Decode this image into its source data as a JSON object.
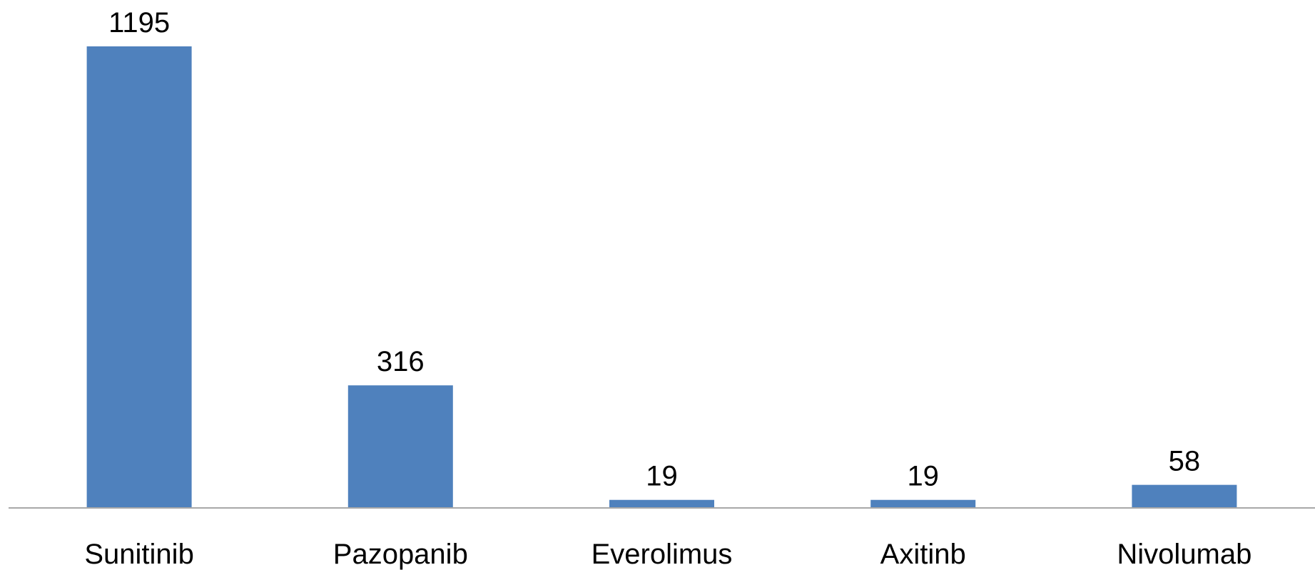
{
  "chart_data": {
    "type": "bar",
    "categories": [
      "Sunitinib",
      "Pazopanib",
      "Everolimus",
      "Axitinb",
      "Nivolumab"
    ],
    "values": [
      1195,
      316,
      19,
      19,
      58
    ],
    "color": "#4f81bd"
  }
}
